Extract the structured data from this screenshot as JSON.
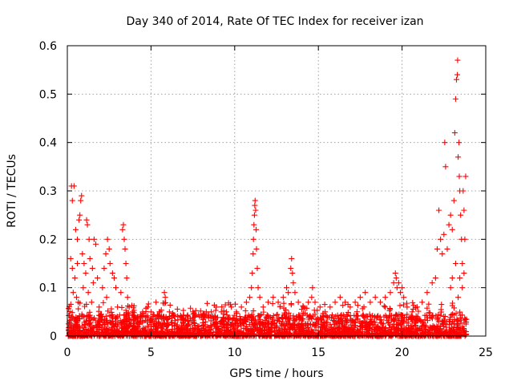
{
  "chart_data": {
    "type": "scatter",
    "title": "Day 340 of 2014, Rate Of TEC Index for receiver izan",
    "xlabel": "GPS time / hours",
    "ylabel": "ROTI / TECUs",
    "xlim": [
      0,
      25
    ],
    "ylim": [
      0,
      0.6
    ],
    "xticks": [
      0,
      5,
      10,
      15,
      20,
      25
    ],
    "yticks": [
      0,
      0.1,
      0.2,
      0.3,
      0.4,
      0.5,
      0.6
    ],
    "ytick_labels": [
      "0",
      "0.1",
      "0.2",
      "0.3",
      "0.4",
      "0.5",
      "0.6"
    ],
    "grid": true,
    "marker": "+",
    "color": "#ff0000",
    "series": [
      {
        "name": "ROTI",
        "points": [
          [
            0.25,
            0.31
          ],
          [
            0.4,
            0.31
          ],
          [
            0.3,
            0.28
          ],
          [
            0.5,
            0.22
          ],
          [
            0.6,
            0.2
          ],
          [
            0.7,
            0.24
          ],
          [
            0.8,
            0.28
          ],
          [
            0.75,
            0.25
          ],
          [
            0.85,
            0.29
          ],
          [
            0.2,
            0.16
          ],
          [
            0.3,
            0.14
          ],
          [
            0.45,
            0.12
          ],
          [
            0.6,
            0.15
          ],
          [
            0.9,
            0.17
          ],
          [
            1.0,
            0.15
          ],
          [
            1.1,
            0.13
          ],
          [
            0.35,
            0.09
          ],
          [
            0.55,
            0.08
          ],
          [
            0.65,
            0.07
          ],
          [
            0.95,
            0.1
          ],
          [
            1.15,
            0.24
          ],
          [
            1.2,
            0.23
          ],
          [
            1.3,
            0.2
          ],
          [
            1.35,
            0.16
          ],
          [
            1.5,
            0.14
          ],
          [
            1.6,
            0.2
          ],
          [
            1.7,
            0.19
          ],
          [
            1.55,
            0.11
          ],
          [
            1.25,
            0.09
          ],
          [
            1.45,
            0.07
          ],
          [
            1.8,
            0.12
          ],
          [
            1.9,
            0.06
          ],
          [
            2.1,
            0.1
          ],
          [
            2.2,
            0.14
          ],
          [
            2.3,
            0.17
          ],
          [
            2.4,
            0.2
          ],
          [
            2.5,
            0.18
          ],
          [
            2.55,
            0.15
          ],
          [
            2.35,
            0.08
          ],
          [
            2.7,
            0.13
          ],
          [
            2.8,
            0.12
          ],
          [
            2.9,
            0.1
          ],
          [
            3.0,
            0.06
          ],
          [
            3.2,
            0.09
          ],
          [
            3.3,
            0.22
          ],
          [
            3.35,
            0.23
          ],
          [
            3.4,
            0.2
          ],
          [
            3.45,
            0.18
          ],
          [
            3.5,
            0.15
          ],
          [
            3.55,
            0.12
          ],
          [
            3.6,
            0.08
          ],
          [
            3.7,
            0.06
          ],
          [
            3.9,
            0.05
          ],
          [
            4.2,
            0.04
          ],
          [
            4.5,
            0.05
          ],
          [
            4.8,
            0.06
          ],
          [
            5.0,
            0.05
          ],
          [
            5.3,
            0.07
          ],
          [
            5.5,
            0.05
          ],
          [
            5.8,
            0.09
          ],
          [
            5.85,
            0.08
          ],
          [
            6.1,
            0.05
          ],
          [
            6.4,
            0.04
          ],
          [
            6.8,
            0.04
          ],
          [
            7.2,
            0.04
          ],
          [
            7.5,
            0.05
          ],
          [
            7.9,
            0.04
          ],
          [
            8.3,
            0.05
          ],
          [
            8.6,
            0.05
          ],
          [
            8.9,
            0.06
          ],
          [
            9.2,
            0.05
          ],
          [
            9.5,
            0.05
          ],
          [
            9.8,
            0.06
          ],
          [
            10.1,
            0.05
          ],
          [
            10.4,
            0.06
          ],
          [
            10.7,
            0.07
          ],
          [
            10.9,
            0.08
          ],
          [
            11.0,
            0.1
          ],
          [
            11.05,
            0.13
          ],
          [
            11.1,
            0.17
          ],
          [
            11.12,
            0.2
          ],
          [
            11.15,
            0.23
          ],
          [
            11.18,
            0.25
          ],
          [
            11.2,
            0.27
          ],
          [
            11.22,
            0.28
          ],
          [
            11.25,
            0.26
          ],
          [
            11.28,
            0.22
          ],
          [
            11.3,
            0.18
          ],
          [
            11.35,
            0.14
          ],
          [
            11.4,
            0.1
          ],
          [
            11.5,
            0.08
          ],
          [
            11.7,
            0.06
          ],
          [
            12.0,
            0.07
          ],
          [
            12.3,
            0.08
          ],
          [
            12.6,
            0.07
          ],
          [
            12.9,
            0.08
          ],
          [
            13.1,
            0.1
          ],
          [
            13.2,
            0.09
          ],
          [
            13.35,
            0.14
          ],
          [
            13.4,
            0.16
          ],
          [
            13.45,
            0.13
          ],
          [
            13.5,
            0.11
          ],
          [
            13.6,
            0.09
          ],
          [
            13.8,
            0.07
          ],
          [
            14.1,
            0.06
          ],
          [
            14.4,
            0.07
          ],
          [
            14.6,
            0.08
          ],
          [
            14.65,
            0.1
          ],
          [
            14.8,
            0.07
          ],
          [
            15.1,
            0.06
          ],
          [
            15.4,
            0.05
          ],
          [
            15.7,
            0.06
          ],
          [
            16.0,
            0.07
          ],
          [
            16.3,
            0.08
          ],
          [
            16.6,
            0.07
          ],
          [
            16.9,
            0.06
          ],
          [
            17.2,
            0.07
          ],
          [
            17.5,
            0.08
          ],
          [
            17.8,
            0.09
          ],
          [
            18.1,
            0.07
          ],
          [
            18.4,
            0.08
          ],
          [
            18.7,
            0.07
          ],
          [
            19.0,
            0.08
          ],
          [
            19.3,
            0.09
          ],
          [
            19.5,
            0.11
          ],
          [
            19.6,
            0.13
          ],
          [
            19.65,
            0.12
          ],
          [
            19.7,
            0.1
          ],
          [
            19.8,
            0.11
          ],
          [
            19.9,
            0.09
          ],
          [
            20.0,
            0.1
          ],
          [
            20.1,
            0.08
          ],
          [
            20.3,
            0.06
          ],
          [
            20.6,
            0.05
          ],
          [
            20.9,
            0.06
          ],
          [
            21.2,
            0.07
          ],
          [
            21.5,
            0.09
          ],
          [
            21.8,
            0.11
          ],
          [
            22.0,
            0.12
          ],
          [
            22.1,
            0.18
          ],
          [
            22.2,
            0.26
          ],
          [
            22.3,
            0.2
          ],
          [
            22.4,
            0.17
          ],
          [
            22.5,
            0.21
          ],
          [
            22.55,
            0.4
          ],
          [
            22.6,
            0.35
          ],
          [
            22.7,
            0.18
          ],
          [
            22.8,
            0.23
          ],
          [
            22.9,
            0.25
          ],
          [
            23.0,
            0.22
          ],
          [
            23.1,
            0.28
          ],
          [
            23.15,
            0.42
          ],
          [
            23.2,
            0.49
          ],
          [
            23.25,
            0.53
          ],
          [
            23.3,
            0.54
          ],
          [
            23.32,
            0.57
          ],
          [
            23.35,
            0.37
          ],
          [
            23.4,
            0.4
          ],
          [
            23.42,
            0.33
          ],
          [
            23.45,
            0.3
          ],
          [
            23.5,
            0.25
          ],
          [
            23.55,
            0.2
          ],
          [
            23.6,
            0.15
          ],
          [
            23.65,
            0.3
          ],
          [
            23.7,
            0.26
          ],
          [
            23.75,
            0.2
          ],
          [
            23.8,
            0.33
          ],
          [
            23.6,
            0.1
          ],
          [
            23.45,
            0.12
          ],
          [
            23.35,
            0.08
          ],
          [
            23.2,
            0.15
          ],
          [
            23.0,
            0.12
          ],
          [
            22.9,
            0.1
          ],
          [
            23.7,
            0.13
          ]
        ]
      }
    ]
  }
}
